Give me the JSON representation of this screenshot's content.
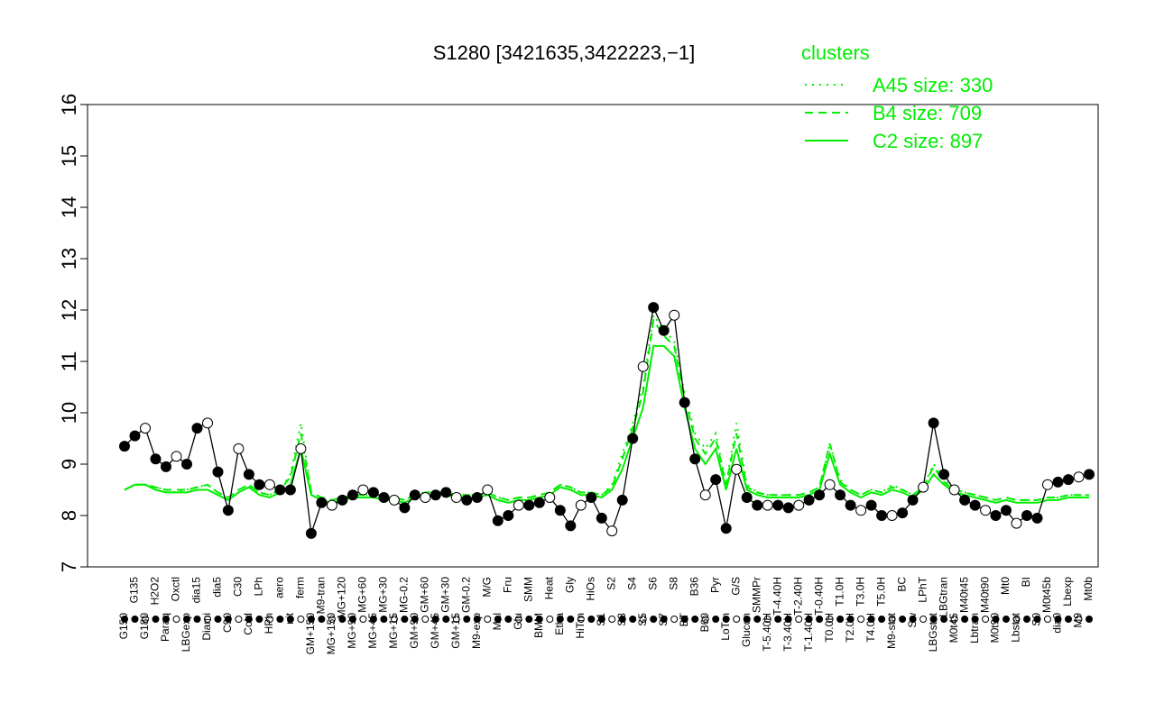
{
  "chart_data": {
    "type": "line",
    "title": "S1280 [3421635,3422223,−1]",
    "xlabel": "",
    "ylabel": "",
    "ylim": [
      7,
      16
    ],
    "yticks": [
      7,
      8,
      9,
      10,
      11,
      12,
      13,
      14,
      15,
      16
    ],
    "x_tick_labels": [
      "G150",
      "G135",
      "G180",
      "H2O2",
      "Paraq",
      "Oxctl",
      "LBGexp",
      "dia15",
      "Diami",
      "dia5",
      "C90",
      "C30",
      "Cold",
      "LPh",
      "HPh",
      "aero",
      "nit",
      "ferm",
      "GM+150",
      "M9-tran",
      "MG+150",
      "MG+120",
      "MG+90",
      "MG+60",
      "MG+45",
      "MG+30",
      "MG+15",
      "MG-0.2",
      "GM+90",
      "GM+60",
      "GM+45",
      "GM+30",
      "GM+15",
      "GM-0.2",
      "M9-exp",
      "M/G",
      "Mal",
      "Fru",
      "Glu",
      "SMM",
      "BMM",
      "Heat",
      "Etha",
      "Gly",
      "HiTm",
      "HiOs",
      "S1",
      "S2",
      "S3",
      "S4",
      "S5",
      "S6",
      "S7",
      "S8",
      "BT",
      "B36",
      "B60",
      "Pyr",
      "LoTm",
      "G/S",
      "Glucon",
      "SMMPr",
      "T-5.40H",
      "T-4.40H",
      "T-3.40H",
      "T-2.40H",
      "T-1.40H",
      "T-0.40H",
      "T0.0H",
      "T1.0H",
      "T2.0H",
      "T3.0H",
      "T4.0H",
      "T5.0H",
      "M9-stat",
      "BC",
      "Sw",
      "LPhT",
      "LBGstat",
      "LBGtran",
      "M0t45",
      "M40t45",
      "Lbtran",
      "M40t90",
      "M0t90",
      "Mt0",
      "Lbstat",
      "BI",
      "S0",
      "M0t45b",
      "dia0",
      "Lbexp",
      "M9",
      "Mt0b"
    ],
    "legend": {
      "title": "clusters",
      "placement": "top-right",
      "entries": [
        {
          "label": "A45 size: 330",
          "style": "dotted"
        },
        {
          "label": "B4 size: 709",
          "style": "dashed"
        },
        {
          "label": "C2 size: 897",
          "style": "solid"
        }
      ]
    },
    "colors": {
      "accent": "#00ee00",
      "points_filled": "#000000",
      "points_open": "#ffffff"
    },
    "series": [
      {
        "role": "gene-profile",
        "values": [
          9.35,
          9.55,
          9.7,
          9.1,
          8.95,
          9.15,
          9.0,
          9.7,
          9.8,
          8.85,
          8.1,
          9.3,
          8.8,
          8.6,
          8.6,
          8.5,
          8.5,
          9.3,
          7.65,
          8.25,
          8.2,
          8.3,
          8.4,
          8.5,
          8.45,
          8.35,
          8.3,
          8.15,
          8.4,
          8.35,
          8.4,
          8.45,
          8.35,
          8.3,
          8.35,
          8.5,
          7.9,
          8.0,
          8.2,
          8.2,
          8.25,
          8.35,
          8.1,
          7.8,
          8.2,
          8.35,
          7.95,
          7.7,
          8.3,
          9.5,
          10.9,
          12.05,
          11.6,
          11.9,
          10.2,
          9.1,
          8.4,
          8.7,
          7.75,
          8.9,
          8.35,
          8.2,
          8.2,
          8.2,
          8.15,
          8.2,
          8.3,
          8.4,
          8.6,
          8.4,
          8.2,
          8.1,
          8.2,
          8.0,
          8.0,
          8.05,
          8.3,
          8.55,
          9.8,
          8.8,
          8.5,
          8.3,
          8.2,
          8.1,
          8.0,
          8.1,
          7.85,
          8.0,
          7.95,
          8.6,
          8.65,
          8.7,
          8.75,
          8.8
        ]
      },
      {
        "name": "A45 size: 330",
        "values": [
          8.5,
          8.6,
          8.6,
          8.55,
          8.5,
          8.45,
          8.5,
          8.55,
          8.6,
          8.45,
          8.35,
          8.5,
          8.6,
          8.45,
          8.4,
          8.5,
          8.8,
          9.8,
          8.45,
          8.35,
          8.3,
          8.35,
          8.4,
          8.4,
          8.4,
          8.35,
          8.35,
          8.3,
          8.4,
          8.45,
          8.45,
          8.45,
          8.4,
          8.4,
          8.4,
          8.45,
          8.35,
          8.3,
          8.35,
          8.35,
          8.4,
          8.45,
          8.6,
          8.55,
          8.45,
          8.45,
          8.4,
          8.6,
          9.2,
          9.8,
          10.5,
          11.9,
          11.6,
          11.4,
          10.4,
          9.6,
          9.3,
          9.6,
          8.6,
          9.8,
          8.6,
          8.45,
          8.4,
          8.4,
          8.4,
          8.4,
          8.45,
          8.55,
          9.4,
          8.7,
          8.5,
          8.4,
          8.5,
          8.45,
          8.6,
          8.5,
          8.4,
          8.55,
          9.0,
          8.7,
          8.5,
          8.45,
          8.4,
          8.35,
          8.3,
          8.35,
          8.3,
          8.3,
          8.3,
          8.35,
          8.35,
          8.4,
          8.4,
          8.4
        ]
      },
      {
        "name": "B4 size: 709",
        "values": [
          8.5,
          8.6,
          8.6,
          8.55,
          8.5,
          8.5,
          8.5,
          8.55,
          8.6,
          8.45,
          8.35,
          8.5,
          8.6,
          8.45,
          8.4,
          8.5,
          8.75,
          9.6,
          8.45,
          8.35,
          8.3,
          8.35,
          8.4,
          8.4,
          8.4,
          8.35,
          8.35,
          8.3,
          8.4,
          8.45,
          8.45,
          8.45,
          8.4,
          8.4,
          8.4,
          8.45,
          8.35,
          8.3,
          8.35,
          8.35,
          8.4,
          8.45,
          8.6,
          8.55,
          8.45,
          8.45,
          8.4,
          8.55,
          9.1,
          9.7,
          10.4,
          11.8,
          11.5,
          11.3,
          10.3,
          9.5,
          9.2,
          9.5,
          8.6,
          9.6,
          8.55,
          8.45,
          8.4,
          8.4,
          8.4,
          8.4,
          8.45,
          8.55,
          9.4,
          8.65,
          8.5,
          8.4,
          8.5,
          8.45,
          8.55,
          8.5,
          8.4,
          8.55,
          8.95,
          8.65,
          8.5,
          8.45,
          8.4,
          8.35,
          8.3,
          8.35,
          8.3,
          8.3,
          8.3,
          8.35,
          8.35,
          8.4,
          8.4,
          8.4
        ]
      },
      {
        "name": "C2 size: 897",
        "values": [
          8.5,
          8.6,
          8.6,
          8.5,
          8.45,
          8.45,
          8.45,
          8.5,
          8.5,
          8.4,
          8.3,
          8.45,
          8.55,
          8.4,
          8.35,
          8.45,
          8.6,
          9.3,
          8.4,
          8.3,
          8.25,
          8.3,
          8.35,
          8.35,
          8.35,
          8.3,
          8.3,
          8.25,
          8.35,
          8.4,
          8.4,
          8.4,
          8.35,
          8.35,
          8.35,
          8.4,
          8.3,
          8.25,
          8.3,
          8.3,
          8.35,
          8.4,
          8.55,
          8.5,
          8.4,
          8.4,
          8.35,
          8.5,
          8.9,
          9.5,
          10.1,
          11.3,
          11.3,
          11.1,
          10.1,
          9.3,
          9.0,
          9.3,
          8.5,
          9.3,
          8.5,
          8.4,
          8.35,
          8.35,
          8.35,
          8.35,
          8.4,
          8.5,
          9.2,
          8.6,
          8.45,
          8.35,
          8.45,
          8.4,
          8.5,
          8.45,
          8.35,
          8.5,
          8.8,
          8.6,
          8.45,
          8.4,
          8.35,
          8.3,
          8.25,
          8.3,
          8.25,
          8.25,
          8.25,
          8.3,
          8.3,
          8.35,
          8.35,
          8.35
        ]
      }
    ]
  }
}
